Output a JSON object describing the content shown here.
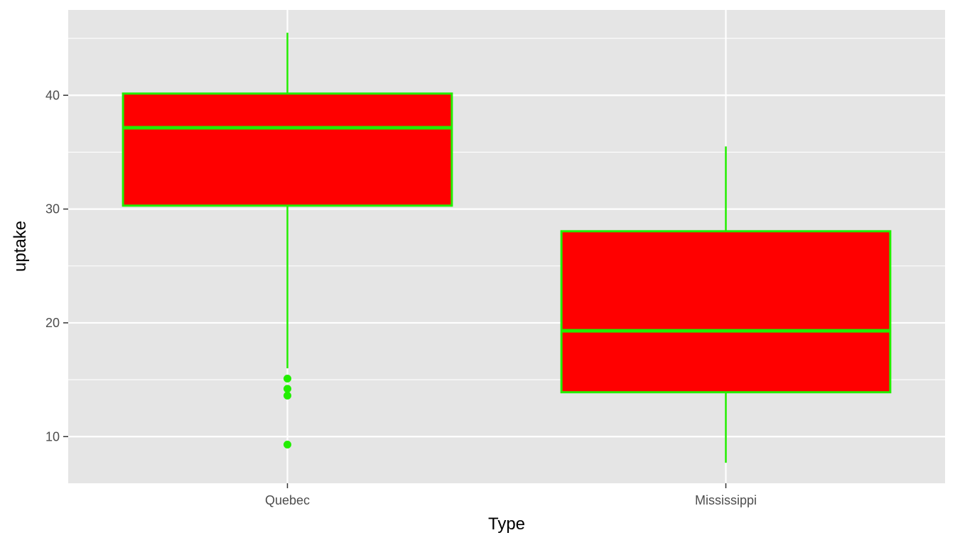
{
  "chart_data": {
    "type": "boxplot",
    "xlabel": "Type",
    "ylabel": "uptake",
    "categories": [
      "Quebec",
      "Mississippi"
    ],
    "boxes": [
      {
        "category": "Quebec",
        "whisker_low": 16.0,
        "q1": 30.3,
        "median": 37.15,
        "q3": 40.15,
        "whisker_high": 45.5,
        "outliers": [
          15.1,
          14.2,
          13.6,
          9.3
        ]
      },
      {
        "category": "Mississippi",
        "whisker_low": 7.7,
        "q1": 13.9,
        "median": 19.3,
        "q3": 28.05,
        "whisker_high": 35.5,
        "outliers": []
      }
    ],
    "ylim": [
      5.9,
      47.5
    ],
    "yticks": [
      10,
      20,
      30,
      40
    ],
    "grid": true,
    "colors": {
      "box_fill": "#ff0000",
      "box_line": "#22ee00",
      "panel_bg": "#e5e5e5",
      "grid": "#ffffff"
    }
  }
}
